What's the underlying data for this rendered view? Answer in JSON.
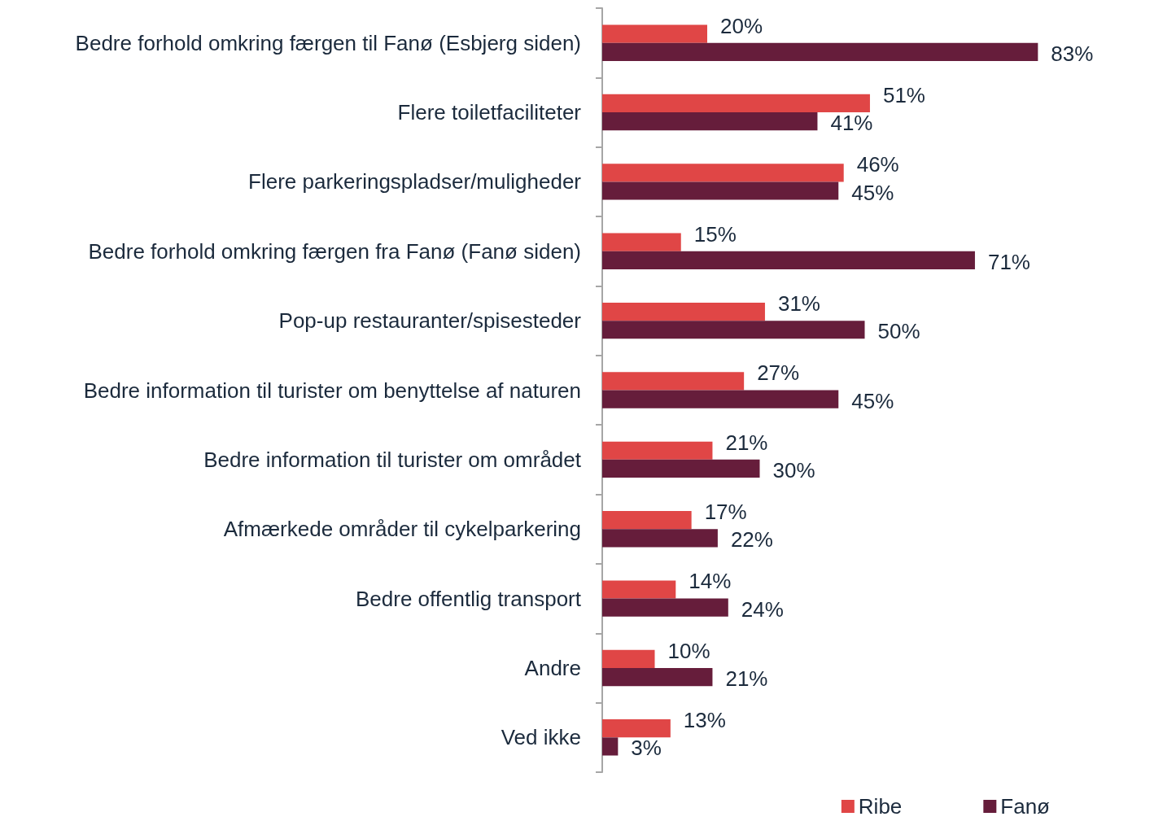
{
  "chart_data": {
    "type": "bar",
    "orientation": "horizontal",
    "legend": "bottom right",
    "categories": [
      "Bedre forhold omkring færgen til Fanø (Esbjerg siden)",
      "Flere toiletfaciliteter",
      "Flere parkeringspladser/muligheder",
      "Bedre forhold omkring færgen fra Fanø (Fanø siden)",
      "Pop-up restauranter/spisesteder",
      "Bedre information til turister om benyttelse af naturen",
      "Bedre information til turister om området",
      "Afmærkede områder til cykelparkering",
      "Bedre offentlig transport",
      "Andre",
      "Ved ikke"
    ],
    "series": [
      {
        "name": "Ribe",
        "color": "#e04646",
        "values": [
          20,
          51,
          46,
          15,
          31,
          27,
          21,
          17,
          14,
          10,
          13
        ],
        "value_labels": [
          "20%",
          "51%",
          "46%",
          "15%",
          "31%",
          "27%",
          "21%",
          "17%",
          "14%",
          "10%",
          "13%"
        ]
      },
      {
        "name": "Fanø",
        "color": "#661d3b",
        "values": [
          83,
          41,
          45,
          71,
          50,
          45,
          30,
          22,
          24,
          21,
          3
        ],
        "value_labels": [
          "83%",
          "41%",
          "45%",
          "71%",
          "50%",
          "45%",
          "30%",
          "22%",
          "24%",
          "21%",
          "3%"
        ]
      }
    ]
  }
}
